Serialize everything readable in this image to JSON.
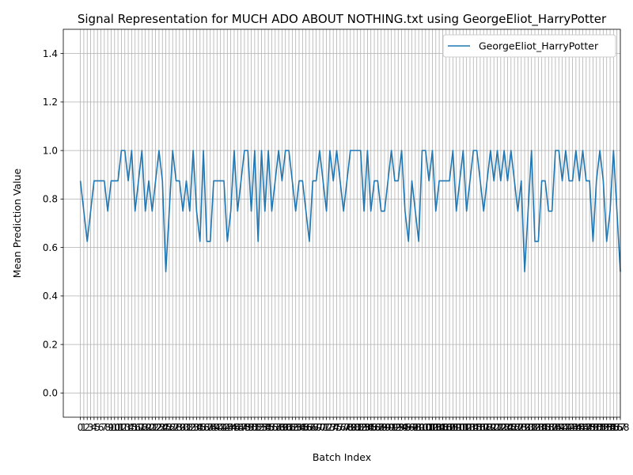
{
  "chart_data": {
    "type": "line",
    "title": "Signal Representation for MUCH ADO ABOUT NOTHING.txt using GeorgeEliot_HarryPotter",
    "xlabel": "Batch Index",
    "ylabel": "Mean Prediction Value",
    "xlim": [
      -5,
      158
    ],
    "ylim": [
      -0.1,
      1.5
    ],
    "yticks": [
      0.0,
      0.2,
      0.4,
      0.6,
      0.8,
      1.0,
      1.2,
      1.4
    ],
    "ytick_labels": [
      "0.0",
      "0.2",
      "0.4",
      "0.6",
      "0.8",
      "1.0",
      "1.2",
      "1.4"
    ],
    "grid": true,
    "legend_position": "top-right",
    "x_ticks_every_integer": true,
    "series": [
      {
        "name": "GeorgeEliot_HarryPotter",
        "color": "#1f77b4",
        "values": [
          0.875,
          0.75,
          0.625,
          0.75,
          0.875,
          0.875,
          0.875,
          0.875,
          0.75,
          0.875,
          0.875,
          0.875,
          1.0,
          1.0,
          0.875,
          1.0,
          0.75,
          0.875,
          1.0,
          0.75,
          0.875,
          0.75,
          0.875,
          1.0,
          0.875,
          0.5,
          0.75,
          1.0,
          0.875,
          0.875,
          0.75,
          0.875,
          0.75,
          1.0,
          0.75,
          0.625,
          1.0,
          0.625,
          0.625,
          0.875,
          0.875,
          0.875,
          0.875,
          0.625,
          0.75,
          1.0,
          0.75,
          0.875,
          1.0,
          1.0,
          0.75,
          1.0,
          0.625,
          1.0,
          0.75,
          1.0,
          0.75,
          0.875,
          1.0,
          0.875,
          1.0,
          1.0,
          0.875,
          0.75,
          0.875,
          0.875,
          0.75,
          0.625,
          0.875,
          0.875,
          1.0,
          0.875,
          0.75,
          1.0,
          0.875,
          1.0,
          0.875,
          0.75,
          0.875,
          1.0,
          1.0,
          1.0,
          1.0,
          0.75,
          1.0,
          0.75,
          0.875,
          0.875,
          0.75,
          0.75,
          0.875,
          1.0,
          0.875,
          0.875,
          1.0,
          0.75,
          0.625,
          0.875,
          0.75,
          0.625,
          1.0,
          1.0,
          0.875,
          1.0,
          0.75,
          0.875,
          0.875,
          0.875,
          0.875,
          1.0,
          0.75,
          0.875,
          1.0,
          0.75,
          0.875,
          1.0,
          1.0,
          0.875,
          0.75,
          0.875,
          1.0,
          0.875,
          1.0,
          0.875,
          1.0,
          0.875,
          1.0,
          0.875,
          0.75,
          0.875,
          0.5,
          0.75,
          1.0,
          0.625,
          0.625,
          0.875,
          0.875,
          0.75,
          0.75,
          1.0,
          1.0,
          0.875,
          1.0,
          0.875,
          0.875,
          1.0,
          0.875,
          1.0,
          0.875,
          0.875,
          0.625,
          0.875,
          1.0,
          0.875,
          0.625,
          0.75,
          1.0,
          0.75,
          0.5
        ]
      }
    ]
  }
}
